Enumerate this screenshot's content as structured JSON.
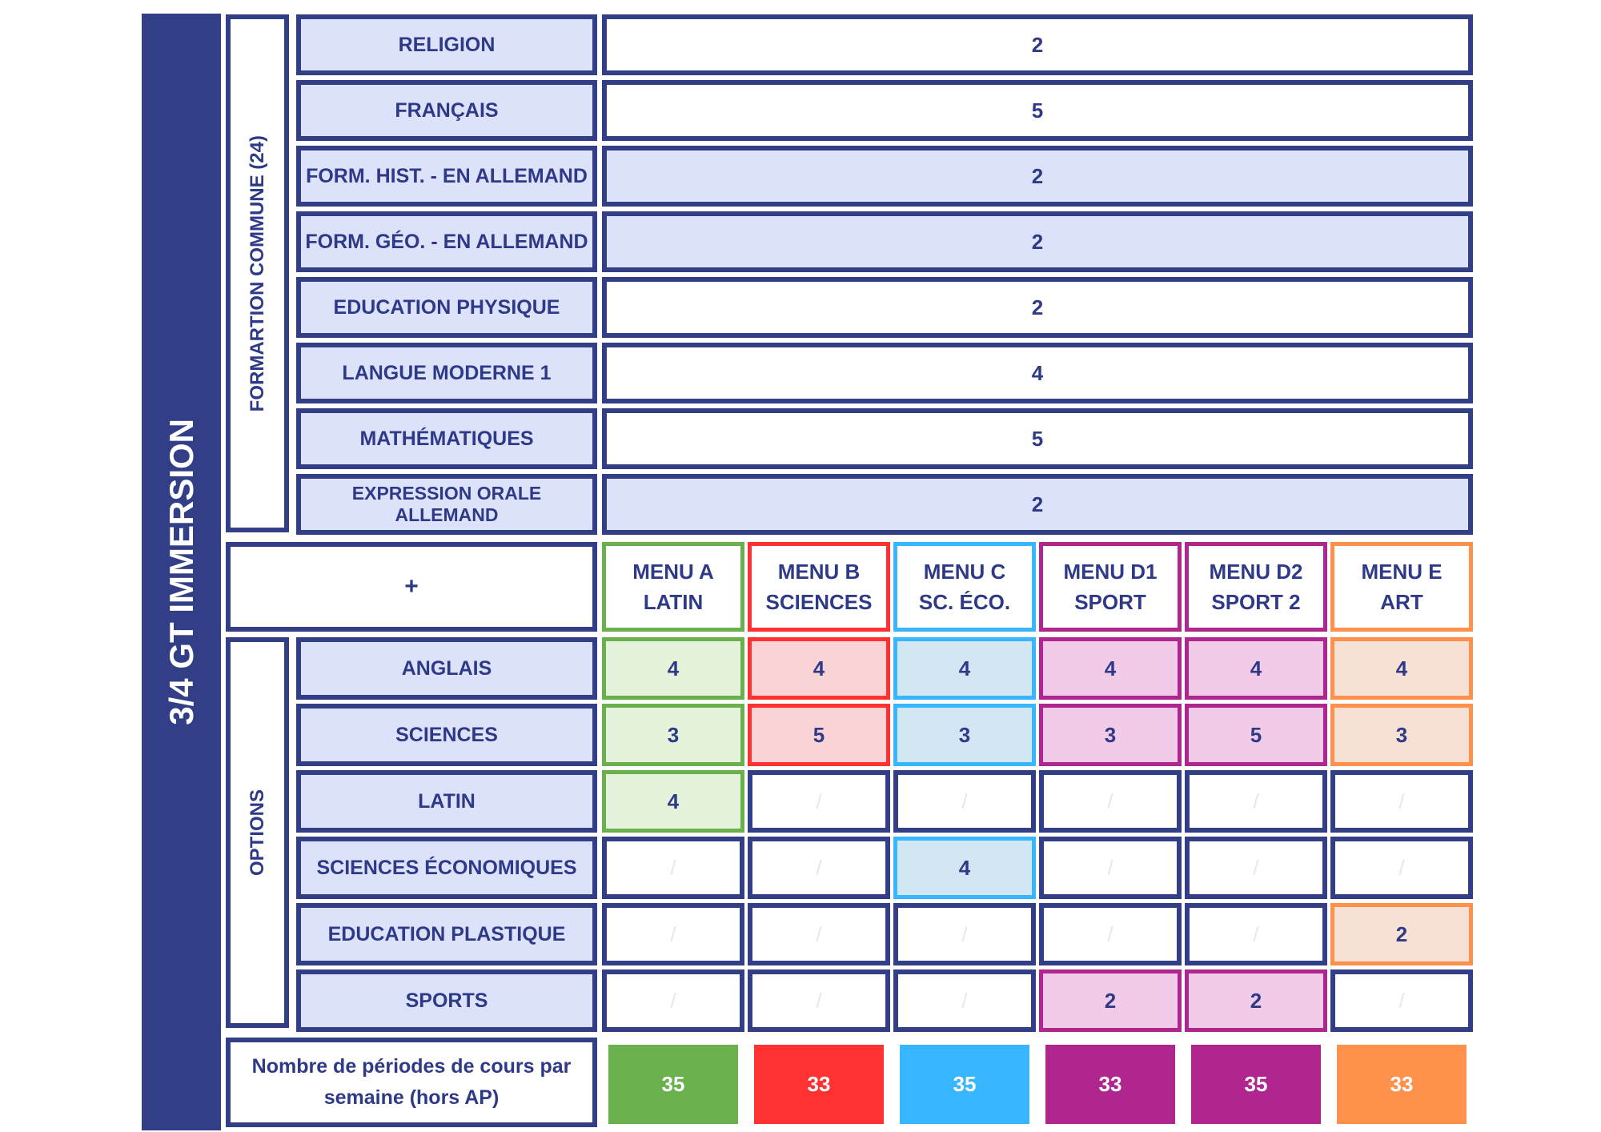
{
  "title": "3/4 GT IMMERSION",
  "formation_commune": {
    "label": "FORMARTION COMMUNE (24)",
    "rows": [
      {
        "subject": "RELIGION",
        "hours": "2"
      },
      {
        "subject": "FRANÇAIS",
        "hours": "5"
      },
      {
        "subject": "FORM. HIST. - EN ALLEMAND",
        "hours": "2"
      },
      {
        "subject": "FORM. GÉO. - EN ALLEMAND",
        "hours": "2"
      },
      {
        "subject": "EDUCATION PHYSIQUE",
        "hours": "2"
      },
      {
        "subject": "LANGUE MODERNE 1",
        "hours": "4"
      },
      {
        "subject": "MATHÉMATIQUES",
        "hours": "5"
      },
      {
        "subject": "EXPRESSION ORALE ALLEMAND",
        "hours": "2"
      }
    ]
  },
  "plus_label": "+",
  "menus": [
    {
      "line1": "MENU A",
      "line2": "LATIN",
      "color": "#6ab04c",
      "tint": "#e5f3dd"
    },
    {
      "line1": "MENU B",
      "line2": "SCIENCES",
      "color": "#ff3131",
      "tint": "#f9d3d5"
    },
    {
      "line1": "MENU C",
      "line2": "SC. ÉCO.",
      "color": "#38b6ff",
      "tint": "#d3e6f4"
    },
    {
      "line1": "MENU D1",
      "line2": "SPORT",
      "color": "#b0268f",
      "tint": "#f2cbe8"
    },
    {
      "line1": "MENU D2",
      "line2": "SPORT 2",
      "color": "#b0268f",
      "tint": "#f2cbe8"
    },
    {
      "line1": "MENU E",
      "line2": "ART",
      "color": "#ff914d",
      "tint": "#f7e0d4"
    }
  ],
  "options": {
    "label": "OPTIONS",
    "rows": [
      {
        "subject": "ANGLAIS",
        "values": [
          "4",
          "4",
          "4",
          "4",
          "4",
          "4"
        ]
      },
      {
        "subject": "SCIENCES",
        "values": [
          "3",
          "5",
          "3",
          "3",
          "5",
          "3"
        ]
      },
      {
        "subject": "LATIN",
        "values": [
          "4",
          "/",
          "/",
          "/",
          "/",
          "/"
        ]
      },
      {
        "subject": "SCIENCES ÉCONOMIQUES",
        "values": [
          "/",
          "/",
          "4",
          "/",
          "/",
          "/"
        ]
      },
      {
        "subject": "EDUCATION PLASTIQUE",
        "values": [
          "/",
          "/",
          "/",
          "/",
          "/",
          "2"
        ]
      },
      {
        "subject": "SPORTS",
        "values": [
          "/",
          "/",
          "/",
          "2",
          "2",
          "/"
        ]
      }
    ]
  },
  "totals": {
    "label": "Nombre de périodes de cours par semaine (hors AP)",
    "values": [
      "35",
      "33",
      "35",
      "33",
      "35",
      "33"
    ]
  }
}
